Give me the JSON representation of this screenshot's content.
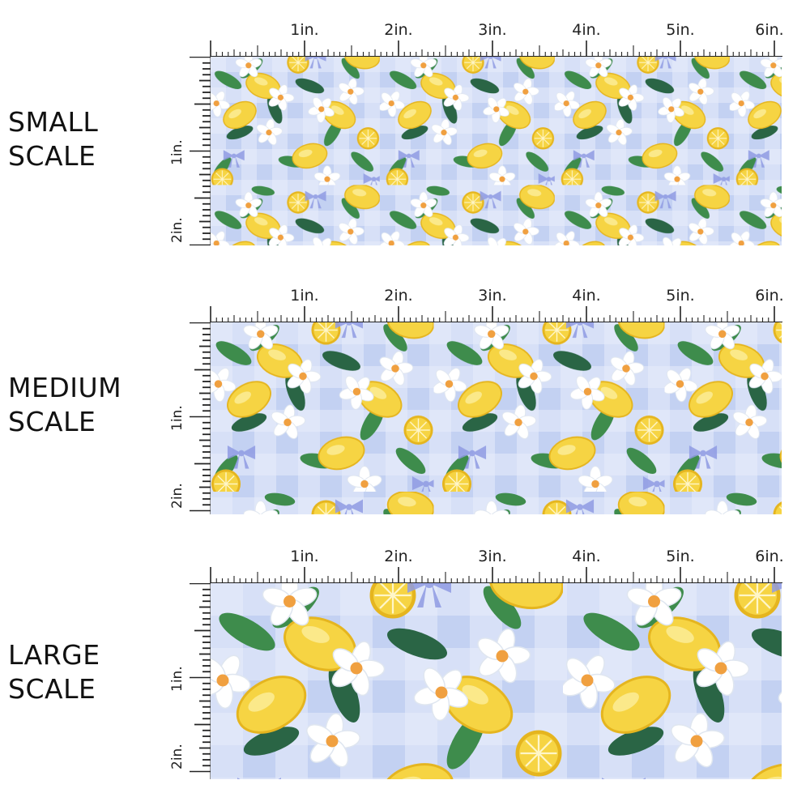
{
  "panels": [
    {
      "label_line1": "SMALL",
      "label_line2": "SCALE"
    },
    {
      "label_line1": "MEDIUM",
      "label_line2": "SCALE"
    },
    {
      "label_line1": "LARGE",
      "label_line2": "SCALE"
    }
  ],
  "ruler": {
    "horizontal_labels": [
      "1in.",
      "2in.",
      "3in.",
      "4in.",
      "5in.",
      "6in."
    ],
    "vertical_labels": [
      "1in.",
      "2in."
    ]
  },
  "pattern": {
    "motifs": [
      "lemon",
      "lemon-slice",
      "white-blossom",
      "leaf",
      "bow",
      "gingham"
    ],
    "colors": {
      "gingham_base": "#c3d1f2",
      "gingham_light": "#e6edfb",
      "lemon": "#f6d443",
      "lemon_edge": "#e5b51f",
      "leaf": "#3e8c4c",
      "leaf_dark": "#2a6545",
      "bow": "#8f9be3",
      "blossom": "#ffffff",
      "center": "#f0a040"
    }
  }
}
